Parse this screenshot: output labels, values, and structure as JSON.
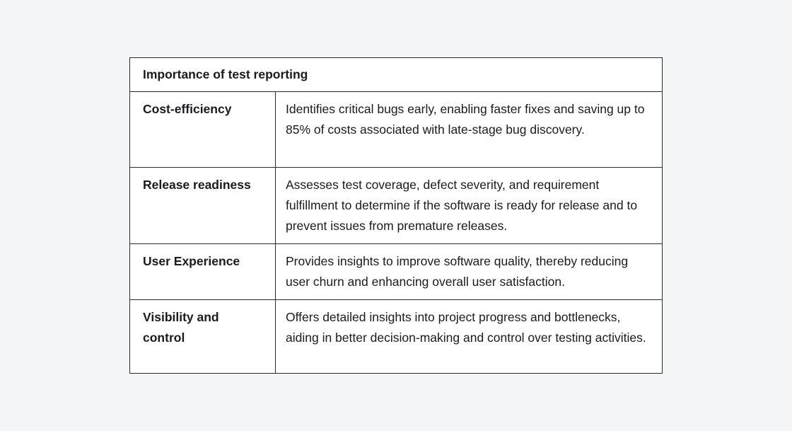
{
  "table": {
    "title": "Importance of test reporting",
    "rows": [
      {
        "label": "Cost-efficiency",
        "description": "Identifies critical bugs early, enabling faster fixes and saving up to 85% of costs associated with late-stage bug discovery."
      },
      {
        "label": "Release readiness",
        "description": "Assesses test coverage, defect severity, and requirement fulfillment to determine if the software is ready for release and to prevent issues from premature releases."
      },
      {
        "label": "User Experience",
        "description": "Provides insights to improve software quality, thereby reducing user churn and enhancing overall user satisfaction."
      },
      {
        "label": "Visibility and control",
        "description": "Offers detailed insights into project progress and bottlenecks, aiding in better decision-making and control over testing activities."
      }
    ]
  }
}
